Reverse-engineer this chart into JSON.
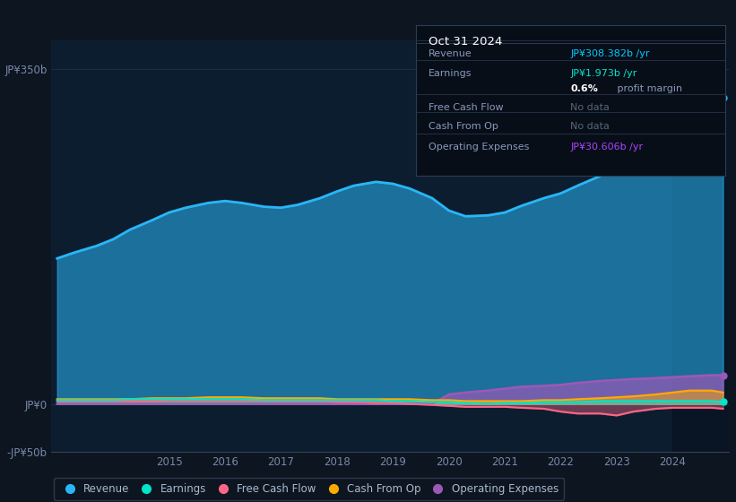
{
  "bg_color": "#0d1520",
  "plot_bg_color": "#0d1d30",
  "grid_color": "#1a2e45",
  "ylim": [
    -50,
    380
  ],
  "yticks": [
    -50,
    0,
    350
  ],
  "ytick_labels": [
    "-JP¥50b",
    "JP¥0",
    "JP¥350b"
  ],
  "x_years": [
    2013.0,
    2013.3,
    2013.7,
    2014.0,
    2014.3,
    2014.7,
    2015.0,
    2015.3,
    2015.7,
    2016.0,
    2016.3,
    2016.7,
    2017.0,
    2017.3,
    2017.7,
    2018.0,
    2018.3,
    2018.7,
    2019.0,
    2019.3,
    2019.7,
    2020.0,
    2020.3,
    2020.7,
    2021.0,
    2021.3,
    2021.7,
    2022.0,
    2022.3,
    2022.7,
    2023.0,
    2023.3,
    2023.7,
    2024.0,
    2024.3,
    2024.7,
    2024.9
  ],
  "revenue": [
    152,
    158,
    165,
    172,
    182,
    192,
    200,
    205,
    210,
    212,
    210,
    206,
    205,
    208,
    215,
    222,
    228,
    232,
    230,
    225,
    215,
    202,
    196,
    197,
    200,
    207,
    215,
    220,
    228,
    238,
    252,
    268,
    285,
    300,
    312,
    318,
    320
  ],
  "earnings": [
    4,
    4,
    4,
    4,
    5,
    5,
    5,
    5,
    5,
    5,
    5,
    4,
    4,
    4,
    4,
    4,
    4,
    4,
    3,
    3,
    2,
    2,
    1,
    0,
    1,
    1,
    2,
    2,
    2,
    3,
    3,
    3,
    3,
    3,
    3,
    3,
    2
  ],
  "free_cash_flow": [
    3,
    3,
    3,
    3,
    3,
    3,
    4,
    4,
    4,
    4,
    4,
    3,
    3,
    3,
    3,
    2,
    2,
    1,
    1,
    0,
    -1,
    -2,
    -3,
    -3,
    -3,
    -4,
    -5,
    -8,
    -10,
    -10,
    -12,
    -8,
    -5,
    -4,
    -4,
    -4,
    -5
  ],
  "cash_from_op": [
    5,
    5,
    5,
    5,
    5,
    6,
    6,
    6,
    7,
    7,
    7,
    6,
    6,
    6,
    6,
    5,
    5,
    5,
    5,
    5,
    4,
    4,
    3,
    3,
    3,
    3,
    4,
    4,
    5,
    6,
    7,
    8,
    10,
    12,
    14,
    14,
    12
  ],
  "operating_expenses": [
    0,
    0,
    0,
    0,
    0,
    0,
    0,
    0,
    0,
    0,
    0,
    0,
    0,
    0,
    0,
    0,
    0,
    0,
    0,
    0,
    0,
    10,
    12,
    14,
    16,
    18,
    19,
    20,
    22,
    24,
    25,
    26,
    27,
    28,
    29,
    30,
    30
  ],
  "revenue_color": "#29b6f6",
  "earnings_color": "#00e5cc",
  "fcf_color": "#ff6688",
  "cfop_color": "#ffaa00",
  "opex_color": "#9b59b6",
  "selected_x": 2024.0,
  "xtick_years": [
    2015,
    2016,
    2017,
    2018,
    2019,
    2020,
    2021,
    2022,
    2023,
    2024
  ],
  "xlabel_color": "#7788aa",
  "ylabel_color": "#7788aa",
  "legend_labels": [
    "Revenue",
    "Earnings",
    "Free Cash Flow",
    "Cash From Op",
    "Operating Expenses"
  ],
  "legend_colors": [
    "#29b6f6",
    "#00e5cc",
    "#ff6688",
    "#ffaa00",
    "#9b59b6"
  ],
  "info_date": "Oct 31 2024",
  "info_rows": [
    {
      "label": "Revenue",
      "value": "JP¥308.382b /yr",
      "value_color": "#00ccff"
    },
    {
      "label": "Earnings",
      "value": "JP¥1.973b /yr",
      "value_color": "#00e5cc"
    },
    {
      "label": "",
      "value": "0.6% profit margin",
      "value_color": "#cccccc"
    },
    {
      "label": "Free Cash Flow",
      "value": "No data",
      "value_color": "#556677"
    },
    {
      "label": "Cash From Op",
      "value": "No data",
      "value_color": "#556677"
    },
    {
      "label": "Operating Expenses",
      "value": "JP¥30.606b /yr",
      "value_color": "#aa44ff"
    }
  ]
}
